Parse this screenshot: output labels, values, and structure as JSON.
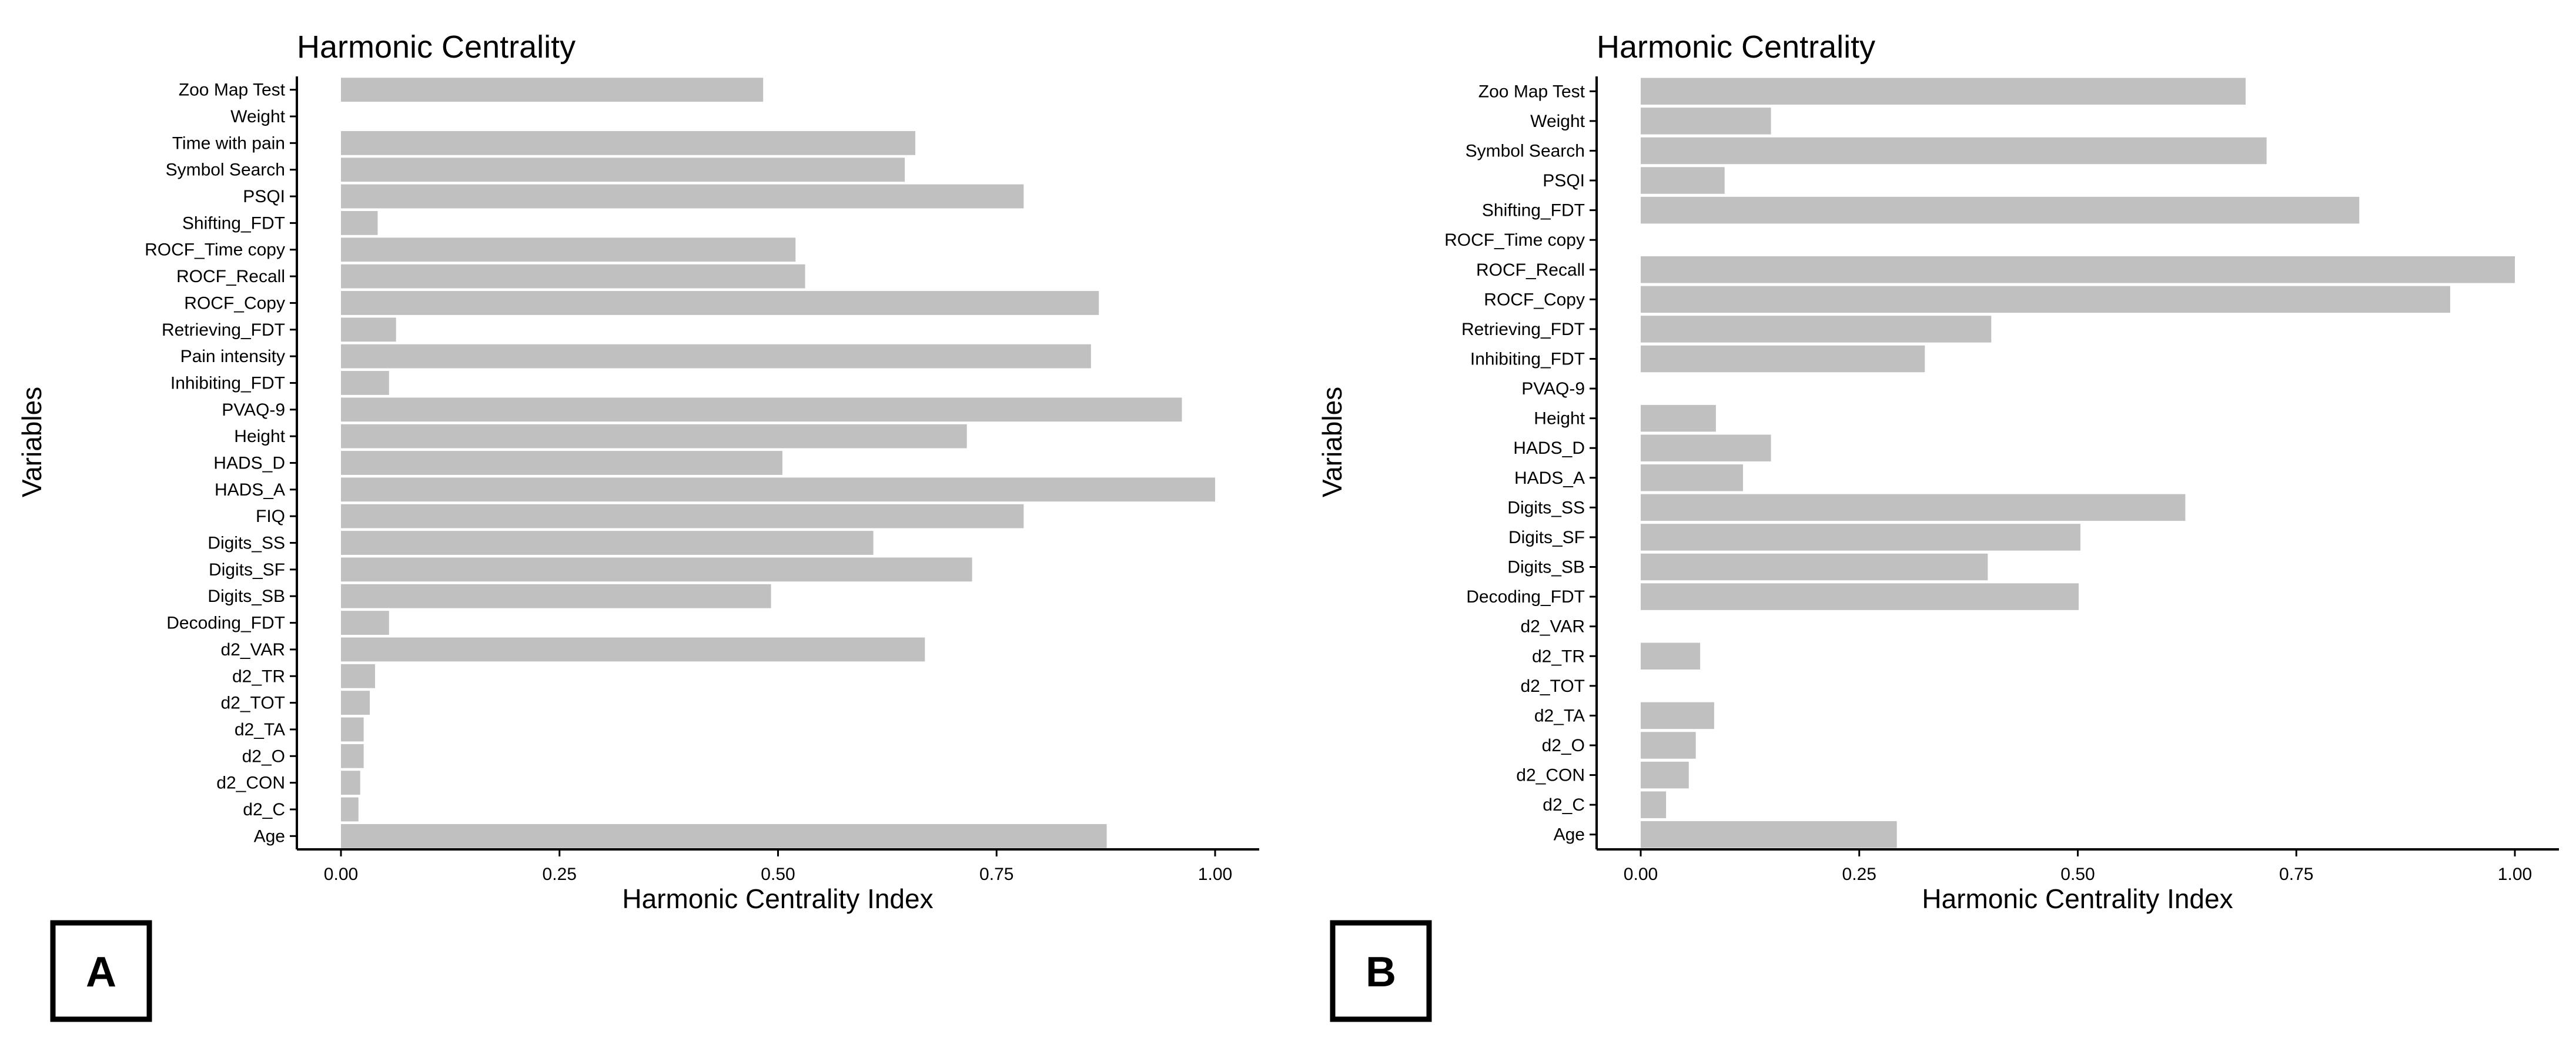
{
  "chart_data": [
    {
      "type": "bar",
      "orientation": "horizontal",
      "panel_label": "A",
      "title": "Harmonic Centrality",
      "xlabel": "Harmonic Centrality Index",
      "ylabel": "Variables",
      "xlim": [
        0,
        1
      ],
      "xticks": [
        "0.00",
        "0.25",
        "0.50",
        "0.75",
        "1.00"
      ],
      "categories": [
        "Zoo Map Test",
        "Weight",
        "Time with pain",
        "Symbol Search",
        "PSQI",
        "Shifting_FDT",
        "ROCF_Time copy",
        "ROCF_Recall",
        "ROCF_Copy",
        "Retrieving_FDT",
        "Pain intensity",
        "Inhibiting_FDT",
        "PVAQ-9",
        "Height",
        "HADS_D",
        "HADS_A",
        "FIQ",
        "Digits_SS",
        "Digits_SF",
        "Digits_SB",
        "Decoding_FDT",
        "d2_VAR",
        "d2_TR",
        "d2_TOT",
        "d2_TA",
        "d2_O",
        "d2_CON",
        "d2_C",
        "Age"
      ],
      "values": [
        0.483,
        0.0,
        0.657,
        0.645,
        0.781,
        0.042,
        0.52,
        0.531,
        0.867,
        0.063,
        0.858,
        0.055,
        0.962,
        0.716,
        0.505,
        1.0,
        0.781,
        0.609,
        0.722,
        0.492,
        0.055,
        0.668,
        0.039,
        0.033,
        0.026,
        0.026,
        0.022,
        0.02,
        0.876
      ],
      "bar_color": "#c0c0c0",
      "grid": false
    },
    {
      "type": "bar",
      "orientation": "horizontal",
      "panel_label": "B",
      "title": "Harmonic Centrality",
      "xlabel": "Harmonic Centrality Index",
      "ylabel": "Variables",
      "xlim": [
        0,
        1
      ],
      "xticks": [
        "0.00",
        "0.25",
        "0.50",
        "0.75",
        "1.00"
      ],
      "categories": [
        "Zoo Map Test",
        "Weight",
        "Symbol Search",
        "PSQI",
        "Shifting_FDT",
        "ROCF_Time copy",
        "ROCF_Recall",
        "ROCF_Copy",
        "Retrieving_FDT",
        "Inhibiting_FDT",
        "PVAQ-9",
        "Height",
        "HADS_D",
        "HADS_A",
        "Digits_SS",
        "Digits_SF",
        "Digits_SB",
        "Decoding_FDT",
        "d2_VAR",
        "d2_TR",
        "d2_TOT",
        "d2_TA",
        "d2_O",
        "d2_CON",
        "d2_C",
        "Age"
      ],
      "values": [
        0.692,
        0.149,
        0.716,
        0.096,
        0.822,
        0.0,
        1.0,
        0.926,
        0.401,
        0.325,
        0.0,
        0.086,
        0.149,
        0.117,
        0.623,
        0.503,
        0.397,
        0.501,
        0.0,
        0.068,
        0.0,
        0.084,
        0.063,
        0.055,
        0.029,
        0.293
      ],
      "bar_color": "#c0c0c0",
      "grid": false
    }
  ]
}
